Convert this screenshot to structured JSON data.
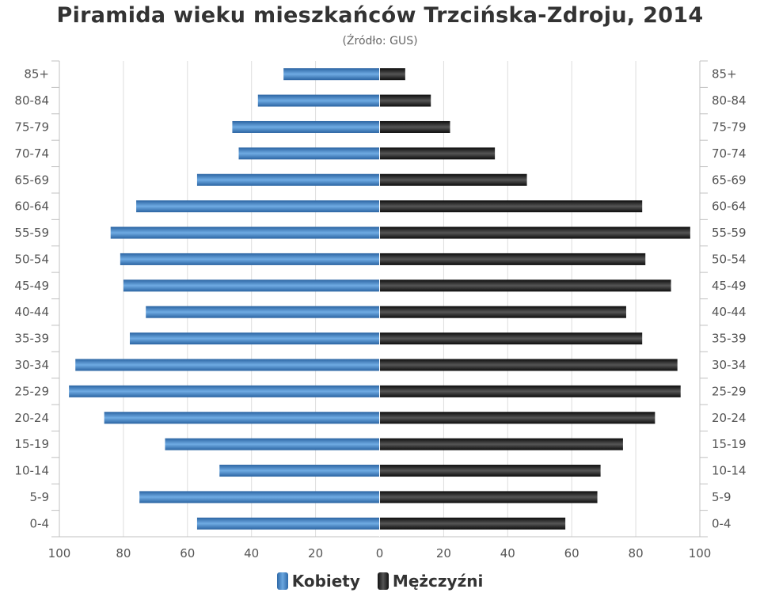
{
  "title": "Piramida wieku mieszkańców Trzcińska-Zdroju, 2014",
  "subtitle": "(Źródło: GUS)",
  "colors": {
    "female": "#4a8bcb",
    "male": "#1a1a1a",
    "grid": "#dddddd",
    "axis": "#c0c0c0",
    "text": "#555555"
  },
  "chart_data": {
    "type": "bar",
    "orientation": "horizontal-pyramid",
    "categories": [
      "85+",
      "80-84",
      "75-79",
      "70-74",
      "65-69",
      "60-64",
      "55-59",
      "50-54",
      "45-49",
      "40-44",
      "35-39",
      "30-34",
      "25-29",
      "20-24",
      "15-19",
      "10-14",
      "5-9",
      "0-4"
    ],
    "series": [
      {
        "name": "Kobiety",
        "side": "left",
        "values": [
          30,
          38,
          46,
          44,
          57,
          76,
          84,
          81,
          80,
          73,
          78,
          95,
          97,
          86,
          67,
          50,
          75,
          57
        ]
      },
      {
        "name": "Mężczyźni",
        "side": "right",
        "values": [
          8,
          16,
          22,
          36,
          46,
          82,
          97,
          83,
          91,
          77,
          82,
          93,
          94,
          86,
          76,
          69,
          68,
          58
        ]
      }
    ],
    "xlim": [
      -100,
      100
    ],
    "x_tick_labels": [
      "100",
      "80",
      "60",
      "40",
      "20",
      "0",
      "20",
      "40",
      "60",
      "80",
      "100"
    ],
    "x_tick_values": [
      -100,
      -80,
      -60,
      -40,
      -20,
      0,
      20,
      40,
      60,
      80,
      100
    ],
    "grid": true,
    "legend_position": "bottom-center"
  }
}
